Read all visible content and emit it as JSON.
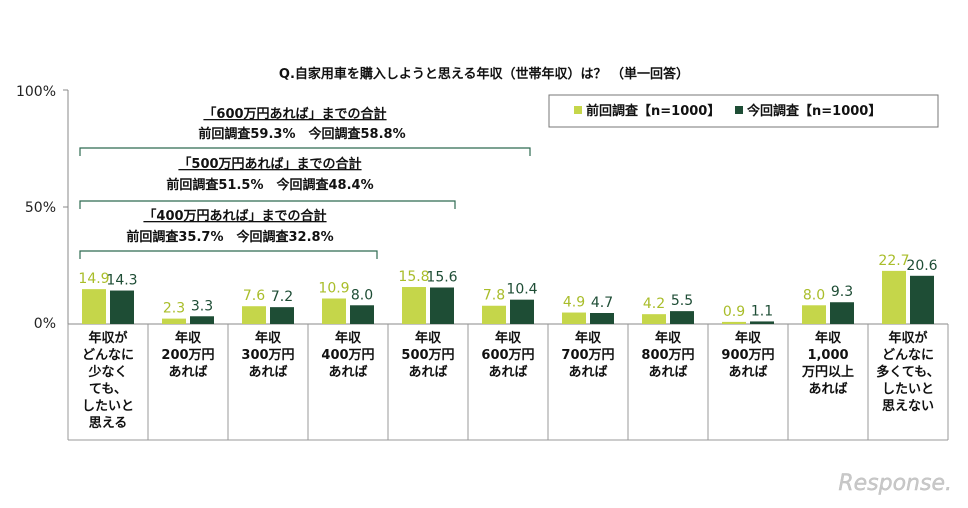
{
  "chart_data": {
    "type": "bar",
    "title": "Q.自家用車を購入しようと思える年収（世帯年収）は？ （単一回答）",
    "yticks": [
      "100%",
      "50%",
      "0%"
    ],
    "ylim": [
      0,
      100
    ],
    "categories": [
      [
        "年収が",
        "どんなに",
        "少なく",
        "ても、",
        "したいと",
        "思える"
      ],
      [
        "年収",
        "200万円",
        "あれば"
      ],
      [
        "年収",
        "300万円",
        "あれば"
      ],
      [
        "年収",
        "400万円",
        "あれば"
      ],
      [
        "年収",
        "500万円",
        "あれば"
      ],
      [
        "年収",
        "600万円",
        "あれば"
      ],
      [
        "年収",
        "700万円",
        "あれば"
      ],
      [
        "年収",
        "800万円",
        "あれば"
      ],
      [
        "年収",
        "900万円",
        "あれば"
      ],
      [
        "年収",
        "1,000",
        "万円以上",
        "あれば"
      ],
      [
        "年収が",
        "どんなに",
        "多くても、",
        "したいと",
        "思えない"
      ]
    ],
    "series": [
      {
        "name": "前回調査【n=1000】",
        "color": "#c5d64a",
        "label_color": "#a9bd2a",
        "values": [
          14.9,
          2.3,
          7.6,
          10.9,
          15.8,
          7.8,
          4.9,
          4.2,
          0.9,
          8.0,
          22.7
        ]
      },
      {
        "name": "今回調査【n=1000】",
        "color": "#1e4d35",
        "label_color": "#1e4d35",
        "values": [
          14.3,
          3.3,
          7.2,
          8.0,
          15.6,
          10.4,
          4.7,
          5.5,
          1.1,
          9.3,
          20.6
        ]
      }
    ],
    "legend_position": "top-right",
    "grid": false,
    "annotations": [
      {
        "title": "「600万円あれば」までの合計",
        "line": "前回調査59.3%　今回調査58.8%",
        "through": 5
      },
      {
        "title": "「500万円あれば」までの合計",
        "line": "前回調査51.5%　今回調査48.4%",
        "through": 4
      },
      {
        "title": "「400万円あれば」までの合計",
        "line": "前回調査35.7%　今回調査32.8%",
        "through": 3
      }
    ]
  },
  "watermark": "Response."
}
